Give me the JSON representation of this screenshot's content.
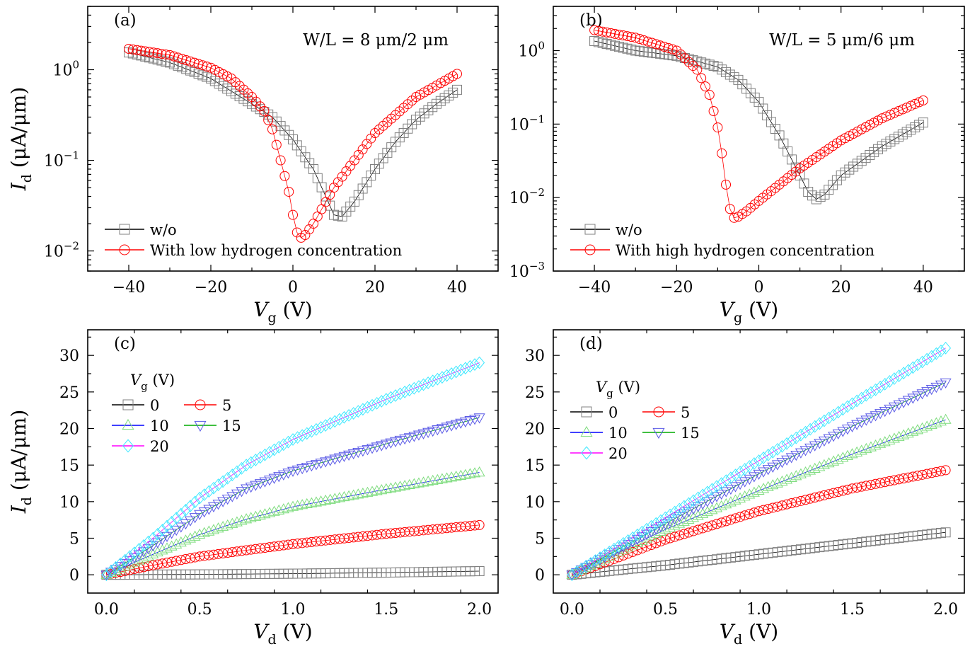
{
  "figure": {
    "description_free": true,
    "colors": {
      "black": "#808080",
      "red": "#ff0000",
      "green": "#00cc00",
      "blue": "#0000ff",
      "magenta": "#ff00ff",
      "cyan": "#00e5ff",
      "gray_marker": "#7f7f7f",
      "light_green_marker": "#7fdc7f",
      "light_blue_marker": "#5a5ae6",
      "light_cyan_marker": "#3ee8ff"
    }
  },
  "chart_data": [
    {
      "id": "a",
      "type": "scatter",
      "panel_label": "(a)",
      "annotation": "W/L = 8 μm/2 μm",
      "xlabel_main": "V",
      "xlabel_sub": "g",
      "xlabel_unit": "(V)",
      "ylabel_main": "I",
      "ylabel_sub": "d",
      "ylabel_unit": "(μA/μm)",
      "yscale": "log",
      "xlim": [
        -50,
        50
      ],
      "ylim": [
        0.006,
        5
      ],
      "xticks": [
        -40,
        -20,
        0,
        20,
        40
      ],
      "xtick_labels": [
        "−40",
        "−20",
        "0",
        "20",
        "40"
      ],
      "yticks": [
        1,
        0.1,
        0.01
      ],
      "ytick_base": [
        "10",
        "10",
        "10"
      ],
      "ytick_exp": [
        "0",
        "−1",
        "−2"
      ],
      "legend_position": "bottom-left",
      "series": [
        {
          "name": "w/o",
          "marker": "square",
          "line_color": "#000000",
          "marker_color": "#808080",
          "x_start": -40,
          "x_end": 40,
          "n_points": 81,
          "knots_x": [
            -40,
            -30,
            -20,
            -10,
            -5,
            0,
            5,
            8,
            10,
            12,
            15,
            20,
            25,
            30,
            35,
            40
          ],
          "knots_y": [
            1.55,
            1.2,
            0.8,
            0.42,
            0.3,
            0.17,
            0.08,
            0.04,
            0.025,
            0.024,
            0.035,
            0.08,
            0.16,
            0.28,
            0.42,
            0.6
          ]
        },
        {
          "name": "With low hydrogen concentration",
          "marker": "circle",
          "line_color": "#ff0000",
          "marker_color": "#ff0000",
          "x_start": -40,
          "x_end": 40,
          "n_points": 81,
          "knots_x": [
            -40,
            -30,
            -20,
            -15,
            -10,
            -7,
            -5,
            -3,
            -1,
            0,
            1,
            2,
            3,
            5,
            10,
            20,
            30,
            40
          ],
          "knots_y": [
            1.7,
            1.45,
            1.05,
            0.8,
            0.5,
            0.35,
            0.22,
            0.1,
            0.045,
            0.025,
            0.016,
            0.014,
            0.015,
            0.02,
            0.05,
            0.2,
            0.5,
            0.9
          ]
        }
      ]
    },
    {
      "id": "b",
      "type": "scatter",
      "panel_label": "(b)",
      "annotation": "W/L = 5 μm/6 μm",
      "xlabel_main": "V",
      "xlabel_sub": "g",
      "xlabel_unit": "(V)",
      "yscale": "log",
      "xlim": [
        -50,
        50
      ],
      "ylim": [
        0.001,
        4
      ],
      "xticks": [
        -40,
        -20,
        0,
        20,
        40
      ],
      "xtick_labels": [
        "−40",
        "−20",
        "0",
        "20",
        "40"
      ],
      "yticks": [
        1,
        0.1,
        0.01,
        0.001
      ],
      "ytick_base": [
        "10",
        "10",
        "10",
        "10"
      ],
      "ytick_exp": [
        "0",
        "−1",
        "−2",
        "−3"
      ],
      "legend_position": "bottom-left",
      "series": [
        {
          "name": "w/o",
          "marker": "square",
          "line_color": "#000000",
          "marker_color": "#808080",
          "x_start": -40,
          "x_end": 40,
          "n_points": 81,
          "knots_x": [
            -40,
            -30,
            -20,
            -10,
            -5,
            0,
            5,
            10,
            12,
            14,
            16,
            20,
            30,
            40
          ],
          "knots_y": [
            1.35,
            1.0,
            0.85,
            0.6,
            0.4,
            0.2,
            0.07,
            0.02,
            0.012,
            0.0095,
            0.011,
            0.02,
            0.05,
            0.105
          ]
        },
        {
          "name": "With high hydrogen concentration",
          "marker": "circle",
          "line_color": "#ff0000",
          "marker_color": "#ff0000",
          "x_start": -40,
          "x_end": 40,
          "n_points": 81,
          "knots_x": [
            -40,
            -30,
            -20,
            -15,
            -12,
            -10,
            -9,
            -8,
            -7,
            -6,
            -5,
            -3,
            0,
            10,
            20,
            30,
            40
          ],
          "knots_y": [
            1.9,
            1.5,
            1.0,
            0.55,
            0.25,
            0.09,
            0.04,
            0.015,
            0.007,
            0.0053,
            0.0055,
            0.0065,
            0.009,
            0.025,
            0.06,
            0.12,
            0.21
          ]
        }
      ]
    },
    {
      "id": "c",
      "type": "scatter",
      "panel_label": "(c)",
      "xlabel_main": "V",
      "xlabel_sub": "d",
      "xlabel_unit": "(V)",
      "ylabel_main": "I",
      "ylabel_sub": "d",
      "ylabel_unit": "(μA/μm)",
      "yscale": "linear",
      "xlim": [
        -0.1,
        2.1
      ],
      "ylim": [
        -2.5,
        33.5
      ],
      "xticks": [
        0,
        0.5,
        1,
        1.5,
        2
      ],
      "xtick_labels": [
        "0.0",
        "0.5",
        "1.0",
        "1.5",
        "2.0"
      ],
      "yticks": [
        0,
        5,
        10,
        15,
        20,
        25,
        30
      ],
      "ytick_labels": [
        "0",
        "5",
        "10",
        "15",
        "20",
        "25",
        "30"
      ],
      "legend_title_main": "V",
      "legend_title_sub": "g",
      "legend_title_unit": "(V)",
      "legend_position": "top-left",
      "series": [
        {
          "name": "0",
          "marker": "square",
          "line_color": "#000000",
          "marker_color": "#808080",
          "x_start": 0,
          "x_end": 2,
          "n_points": 81,
          "knots_x": [
            0,
            0.5,
            1,
            1.5,
            2
          ],
          "knots_y": [
            0,
            0.05,
            0.15,
            0.3,
            0.5
          ]
        },
        {
          "name": "5",
          "marker": "circle",
          "line_color": "#ff0000",
          "marker_color": "#ff0000",
          "x_start": 0,
          "x_end": 2,
          "n_points": 81,
          "knots_x": [
            0,
            0.25,
            0.5,
            1,
            1.5,
            2
          ],
          "knots_y": [
            0,
            1.3,
            2.5,
            4.2,
            5.6,
            6.8
          ]
        },
        {
          "name": "10",
          "marker": "triangle-up",
          "line_color": "#0000ff",
          "marker_color": "#7fdc7f",
          "x_start": 0,
          "x_end": 2,
          "n_points": 81,
          "knots_x": [
            0,
            0.25,
            0.5,
            0.75,
            1,
            1.5,
            2
          ],
          "knots_y": [
            0,
            2.8,
            5.5,
            7.6,
            9.3,
            11.7,
            14
          ]
        },
        {
          "name": "15",
          "marker": "triangle-down",
          "line_color": "#00aa00",
          "marker_color": "#5a5ae6",
          "x_start": 0,
          "x_end": 2,
          "n_points": 81,
          "knots_x": [
            0,
            0.25,
            0.5,
            0.75,
            1,
            1.5,
            2
          ],
          "knots_y": [
            0,
            4,
            8.3,
            11.8,
            14.2,
            17.9,
            21.5
          ]
        },
        {
          "name": "20",
          "marker": "diamond",
          "line_color": "#ff00ff",
          "marker_color": "#3ee8ff",
          "x_start": 0,
          "x_end": 2,
          "n_points": 81,
          "knots_x": [
            0,
            0.25,
            0.5,
            0.75,
            1,
            1.5,
            2
          ],
          "knots_y": [
            0,
            5,
            10.5,
            15,
            18.5,
            24,
            29
          ]
        }
      ]
    },
    {
      "id": "d",
      "type": "scatter",
      "panel_label": "(d)",
      "xlabel_main": "V",
      "xlabel_sub": "d",
      "xlabel_unit": "(V)",
      "yscale": "linear",
      "xlim": [
        -0.1,
        2.1
      ],
      "ylim": [
        -2.5,
        33.5
      ],
      "xticks": [
        0,
        0.5,
        1,
        1.5,
        2
      ],
      "xtick_labels": [
        "0.0",
        "0.5",
        "1.0",
        "1.5",
        "2.0"
      ],
      "yticks": [
        0,
        5,
        10,
        15,
        20,
        25,
        30
      ],
      "ytick_labels": [
        "0",
        "5",
        "10",
        "15",
        "20",
        "25",
        "30"
      ],
      "legend_title_main": "V",
      "legend_title_sub": "g",
      "legend_title_unit": "(V)",
      "legend_position": "top-left",
      "series": [
        {
          "name": "0",
          "marker": "square",
          "line_color": "#000000",
          "marker_color": "#808080",
          "x_start": 0,
          "x_end": 2,
          "n_points": 81,
          "knots_x": [
            0,
            0.5,
            1,
            1.5,
            2
          ],
          "knots_y": [
            0,
            1.3,
            2.8,
            4.3,
            5.8
          ]
        },
        {
          "name": "5",
          "marker": "circle",
          "line_color": "#ff0000",
          "marker_color": "#ff0000",
          "x_start": 0,
          "x_end": 2,
          "n_points": 81,
          "knots_x": [
            0,
            0.5,
            1,
            1.5,
            2
          ],
          "knots_y": [
            0,
            4.8,
            8.7,
            11.8,
            14.3
          ]
        },
        {
          "name": "10",
          "marker": "triangle-up",
          "line_color": "#0000ff",
          "marker_color": "#7fdc7f",
          "x_start": 0,
          "x_end": 2,
          "n_points": 81,
          "knots_x": [
            0,
            0.5,
            1,
            1.5,
            2
          ],
          "knots_y": [
            0,
            6.2,
            11.5,
            16.5,
            21.2
          ]
        },
        {
          "name": "15",
          "marker": "triangle-down",
          "line_color": "#00aa00",
          "marker_color": "#5a5ae6",
          "x_start": 0,
          "x_end": 2,
          "n_points": 81,
          "knots_x": [
            0,
            0.5,
            1,
            1.5,
            2
          ],
          "knots_y": [
            0,
            7,
            13.8,
            20.3,
            26.3
          ]
        },
        {
          "name": "20",
          "marker": "diamond",
          "line_color": "#ff00ff",
          "marker_color": "#3ee8ff",
          "x_start": 0,
          "x_end": 2,
          "n_points": 81,
          "knots_x": [
            0,
            0.5,
            1,
            1.5,
            2
          ],
          "knots_y": [
            0,
            7.8,
            15.6,
            23.4,
            31
          ]
        }
      ]
    }
  ]
}
